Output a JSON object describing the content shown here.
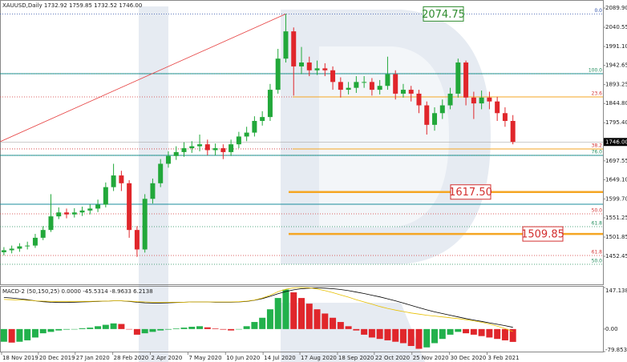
{
  "chart_data": [
    {
      "type": "candlestick",
      "title": "XAUUSD,Daily  1732.92 1759.85 1732.52 1746.00",
      "open": [
        1463,
        1468,
        1472,
        1478,
        1480,
        1500,
        1520,
        1555,
        1565,
        1560,
        1565,
        1570,
        1575,
        1585,
        1630,
        1660,
        1640,
        1520,
        1470,
        1600,
        1640,
        1690,
        1710,
        1720,
        1730,
        1735,
        1740,
        1725,
        1730,
        1720,
        1740,
        1760,
        1770,
        1800,
        1810,
        1880,
        1960,
        2030,
        1940,
        1950,
        1930,
        1935,
        1930,
        1900,
        1880,
        1885,
        1900,
        1900,
        1880,
        1890,
        1920,
        1870,
        1880,
        1870,
        1840,
        1790,
        1820,
        1840,
        1870,
        1950,
        1860,
        1845,
        1860,
        1850,
        1820,
        1800
      ],
      "high": [
        1476,
        1480,
        1486,
        1490,
        1510,
        1530,
        1612,
        1578,
        1575,
        1576,
        1580,
        1586,
        1598,
        1642,
        1690,
        1672,
        1648,
        1530,
        1612,
        1652,
        1702,
        1722,
        1735,
        1745,
        1748,
        1765,
        1752,
        1742,
        1740,
        1752,
        1772,
        1785,
        1812,
        1825,
        1895,
        1985,
        2074.75,
        2040,
        1990,
        1965,
        1955,
        1948,
        1940,
        1912,
        1900,
        1915,
        1915,
        1910,
        1905,
        1965,
        1930,
        1895,
        1890,
        1880,
        1850,
        1835,
        1855,
        1885,
        1960,
        1955,
        1875,
        1878,
        1875,
        1862,
        1835,
        1815
      ],
      "low": [
        1455,
        1460,
        1464,
        1470,
        1474,
        1494,
        1515,
        1548,
        1550,
        1552,
        1556,
        1560,
        1566,
        1578,
        1620,
        1620,
        1500,
        1451,
        1462,
        1588,
        1630,
        1680,
        1700,
        1708,
        1718,
        1722,
        1712,
        1712,
        1702,
        1710,
        1730,
        1748,
        1760,
        1788,
        1800,
        1870,
        1950,
        1865,
        1920,
        1915,
        1918,
        1915,
        1880,
        1860,
        1868,
        1872,
        1885,
        1865,
        1868,
        1880,
        1855,
        1860,
        1850,
        1820,
        1765,
        1775,
        1805,
        1830,
        1860,
        1840,
        1805,
        1830,
        1830,
        1800,
        1785,
        1740
      ],
      "close": [
        1468,
        1472,
        1478,
        1480,
        1500,
        1520,
        1555,
        1565,
        1560,
        1565,
        1570,
        1575,
        1585,
        1630,
        1660,
        1640,
        1520,
        1470,
        1600,
        1640,
        1690,
        1710,
        1720,
        1730,
        1735,
        1740,
        1725,
        1730,
        1720,
        1740,
        1760,
        1770,
        1800,
        1810,
        1880,
        1960,
        2030,
        1940,
        1950,
        1930,
        1935,
        1930,
        1900,
        1880,
        1885,
        1900,
        1900,
        1880,
        1890,
        1920,
        1870,
        1880,
        1870,
        1840,
        1790,
        1820,
        1840,
        1870,
        1950,
        1860,
        1845,
        1860,
        1850,
        1820,
        1800,
        1746
      ],
      "up_color": "#22a83a",
      "down_color": "#e0262b",
      "xlim": [
        -0.5,
        76.5
      ],
      "xticks": [
        {
          "value": -0.3,
          "label": "18 Nov 2019"
        },
        {
          "value": 4.4,
          "label": "20 Dec 2019"
        },
        {
          "value": 9.1,
          "label": "27 Jan 2020"
        },
        {
          "value": 13.9,
          "label": "28 Feb 2020"
        },
        {
          "value": 18.7,
          "label": "2 Apr 2020"
        },
        {
          "value": 23.5,
          "label": "7 May 2020"
        },
        {
          "value": 28.3,
          "label": "10 Jun 2020"
        },
        {
          "value": 33.1,
          "label": "14 Jul 2020"
        },
        {
          "value": 37.8,
          "label": "17 Aug 2020"
        },
        {
          "value": 42.6,
          "label": "18 Sep 2020"
        },
        {
          "value": 47.3,
          "label": "22 Oct 2020"
        },
        {
          "value": 52.1,
          "label": "25 Nov 2020"
        },
        {
          "value": 56.9,
          "label": "30 Dec 2020"
        },
        {
          "value": 61.7,
          "label": "3 Feb 2021"
        }
      ],
      "ylim": [
        1380.5,
        2110.5
      ],
      "yticks": [
        {
          "value": 2089.9,
          "label": "2089.90"
        },
        2040.55,
        {
          "value": 1991.1,
          "label": "1991.10"
        },
        1942.65,
        1893.25,
        {
          "value": 1844.8,
          "label": "1844.80"
        },
        {
          "value": 1795.4,
          "label": "1795.40"
        },
        1697.55,
        {
          "value": 1649.1,
          "label": "1649.10"
        },
        {
          "value": 1599.7,
          "label": "1599.70"
        },
        1551.25,
        1501.85,
        1452.45
      ],
      "current_price": {
        "value": 1746,
        "label": "1746.00"
      },
      "fib_levels": [
        {
          "label": "0.0",
          "value": 2074.75,
          "color": "#2b4ea8"
        },
        {
          "label": "100.0",
          "value": 1921.3,
          "color": "#1e8c5a"
        },
        {
          "label": "23.6",
          "value": 1861.7,
          "color": "#d33333"
        },
        {
          "label": "38.2",
          "value": 1728.1,
          "color": "#d33333"
        },
        {
          "label": "76.0",
          "value": 1711.6,
          "color": "#1e8c5a"
        },
        {
          "label": "50.0",
          "value": 1561.5,
          "color": "#d33333"
        },
        {
          "label": "61.8",
          "value": 1528.6,
          "color": "#1e8c5a"
        },
        {
          "label": "61.8",
          "value": 1454.6,
          "color": "#d33333"
        },
        {
          "label": "50.0",
          "value": 1431.9,
          "color": "#1e8c5a"
        }
      ],
      "channel_lines": {
        "color": "#1b8c9c",
        "values": [
          1921.3,
          1711.6,
          1586.2
        ]
      },
      "support_lines": {
        "color": "#f5a623",
        "values": [
          1861.7,
          1728.1
        ]
      },
      "price_boxes": [
        {
          "value": 2074.75,
          "label": "2074.75",
          "color": "#2e8b2e"
        },
        {
          "value": 1617.5,
          "label": "1617.50",
          "color": "#d32f2f"
        },
        {
          "value": 1509.85,
          "label": "1509.85",
          "color": "#d32f2f"
        }
      ],
      "trend_line": {
        "start": 1746.6,
        "end": 2074.75,
        "color": "#e64040"
      }
    },
    {
      "type": "macd",
      "title": "MACD-2 (50,150,25) 0.0000 -45.5314 -8.9633 6.2138",
      "xlim": [
        -0.5,
        76.5
      ],
      "ylim": [
        -79.8533,
        147.1389
      ],
      "yticks": [
        147.1389,
        {
          "value": 0,
          "label": "0.00"
        },
        -79.8533
      ],
      "up_color": "#22b14c",
      "down_color": "#e0262b",
      "values": [
        -45,
        -48,
        -45,
        -40,
        -30,
        -15,
        -10,
        -5,
        -2,
        0,
        3,
        5,
        10,
        15,
        20,
        18,
        0,
        -20,
        -15,
        -10,
        -5,
        -2,
        2,
        5,
        8,
        10,
        6,
        2,
        -2,
        -5,
        0,
        10,
        25,
        40,
        70,
        110,
        140,
        130,
        110,
        90,
        70,
        55,
        40,
        25,
        10,
        -5,
        -20,
        -30,
        -35,
        -40,
        -45,
        -50,
        -60,
        -70,
        -65,
        -50,
        -35,
        -20,
        -10,
        -15,
        -20,
        -25,
        -30,
        -35,
        -40,
        -45.5314
      ],
      "lines": [
        {
          "color": "#000000",
          "values": [
            112,
            110,
            107,
            104,
            100,
            97,
            95,
            94,
            94,
            95,
            96,
            97,
            98,
            99,
            100,
            100,
            98,
            95,
            93,
            92,
            92,
            93,
            94,
            95,
            96,
            96,
            96,
            95,
            95,
            95,
            96,
            98,
            102,
            108,
            116,
            125,
            133,
            139,
            143,
            145,
            146,
            145,
            143,
            140,
            136,
            131,
            126,
            120,
            114,
            107,
            100,
            92,
            84,
            76,
            68,
            61,
            55,
            49,
            43,
            37,
            32,
            27,
            22,
            17,
            12,
            6.2138
          ]
        },
        {
          "color": "#e8c000",
          "values": [
            105,
            104,
            103,
            102,
            100,
            99,
            98,
            98,
            98,
            98,
            98,
            98,
            99,
            99,
            100,
            100,
            99,
            97,
            96,
            95,
            95,
            95,
            95,
            95,
            96,
            96,
            96,
            96,
            96,
            96,
            97,
            99,
            103,
            110,
            120,
            132,
            141,
            146,
            147,
            146,
            142,
            136,
            129,
            121,
            113,
            104,
            96,
            88,
            80,
            73,
            67,
            62,
            57,
            53,
            49,
            46,
            43,
            40,
            37,
            33,
            29,
            24,
            18,
            10,
            2,
            -8.9633
          ]
        }
      ]
    }
  ]
}
